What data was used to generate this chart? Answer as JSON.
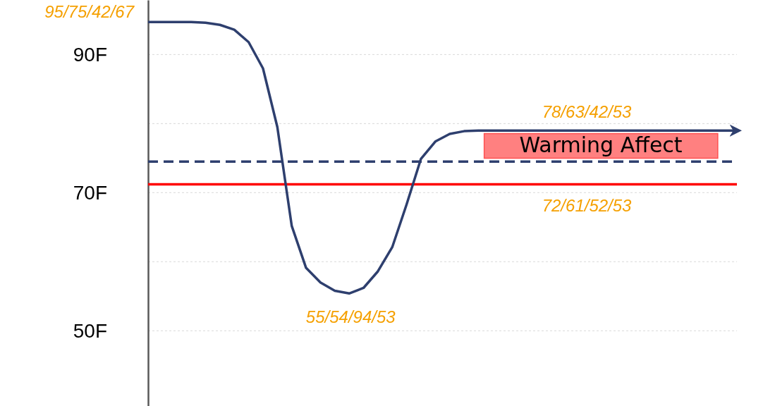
{
  "chart_data": {
    "type": "line",
    "categories": [
      null,
      null,
      null,
      null,
      null,
      null,
      null,
      null,
      null,
      null,
      null,
      null,
      null,
      null,
      null,
      null,
      null,
      null,
      null,
      null,
      null,
      null,
      null,
      null,
      null,
      null,
      null,
      null,
      null,
      null,
      null,
      null,
      null,
      null,
      null,
      null,
      null,
      null,
      null,
      null,
      null,
      null
    ],
    "series": [
      {
        "color": "#2e3f6e",
        "values": [
          94.7,
          94.7,
          94.7,
          94.7,
          94.6,
          94.3,
          93.6,
          91.8,
          88,
          79.5,
          65.2,
          59.1,
          57,
          55.8,
          55.4,
          56.2,
          58.6,
          62.1,
          68.3,
          74.9,
          77.4,
          78.5,
          78.9,
          79,
          79,
          79,
          79,
          79,
          79,
          79,
          79,
          79,
          79,
          79,
          79,
          79,
          79,
          79,
          79,
          79,
          79,
          79
        ]
      }
    ],
    "ylim": [
      39.1,
      97.9
    ],
    "yticks": [
      {
        "value": 50,
        "label": "50F"
      },
      {
        "value": 60,
        "label": null
      },
      {
        "value": 70,
        "label": "70F"
      },
      {
        "value": 80,
        "label": null
      },
      {
        "value": 90,
        "label": "90F"
      }
    ],
    "tick_labels": "y",
    "grid": "y",
    "marker": "none",
    "line_style": "solid",
    "ref_lines": [
      {
        "axis": "y",
        "value": 74.5,
        "color": "#2e3f6e",
        "line_style": "dashed"
      },
      {
        "axis": "y",
        "value": 71.2,
        "color": "#ff0000",
        "line_style": "solid"
      }
    ],
    "annotations": [
      "95/75/42/67",
      {
        "text": "78/63/42/53",
        "y": 79
      },
      {
        "text": "72/61/52/53",
        "y": 71.2
      },
      {
        "text": "55/54/94/53",
        "y": 55.4
      },
      "Warming Affect"
    ]
  }
}
